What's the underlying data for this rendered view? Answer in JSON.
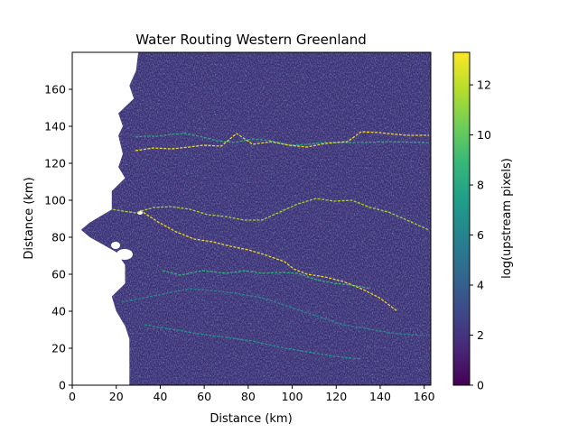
{
  "chart_data": {
    "type": "heatmap",
    "title": "Water Routing Western Greenland",
    "xlabel": "Distance (km)",
    "ylabel": "Distance (km)",
    "xlim": [
      0,
      163
    ],
    "ylim": [
      0,
      180
    ],
    "xticks": [
      0,
      20,
      40,
      60,
      80,
      100,
      120,
      140,
      160
    ],
    "yticks": [
      0,
      20,
      40,
      60,
      80,
      100,
      120,
      140,
      160
    ],
    "colorbar": {
      "label": "log(upstream pixels)",
      "range": [
        0,
        13.3
      ],
      "ticks": [
        0,
        2,
        4,
        6,
        8,
        10,
        12
      ],
      "colormap": "viridis",
      "colors": [
        "#440154",
        "#482878",
        "#3e4989",
        "#31688e",
        "#26828e",
        "#1f9e89",
        "#35b779",
        "#6ece58",
        "#b5de2b",
        "#fde725"
      ]
    },
    "land_edge_west_km": [
      [
        0,
        30
      ],
      [
        10,
        29
      ],
      [
        18,
        26
      ],
      [
        25,
        28
      ],
      [
        33,
        21
      ],
      [
        40,
        23
      ],
      [
        45,
        21
      ],
      [
        55,
        23
      ],
      [
        62,
        21
      ],
      [
        68,
        24
      ],
      [
        75,
        18
      ],
      [
        85,
        18
      ],
      [
        92,
        8
      ],
      [
        96,
        4
      ],
      [
        100,
        8
      ],
      [
        108,
        20
      ],
      [
        115,
        24
      ],
      [
        125,
        24
      ],
      [
        132,
        18
      ],
      [
        140,
        20
      ],
      [
        148,
        24
      ],
      [
        155,
        26
      ],
      [
        162,
        26
      ],
      [
        170,
        26
      ],
      [
        180,
        26
      ]
    ],
    "major_channels": [
      {
        "name": "",
        "points": [
          [
            150,
            152
          ],
          [
            160,
            151
          ],
          [
            175,
            151
          ],
          [
            190,
            149
          ],
          [
            205,
            148
          ],
          [
            225,
            152
          ],
          [
            240,
            156
          ],
          [
            260,
            158
          ],
          [
            280,
            154
          ],
          [
            300,
            156
          ],
          [
            320,
            161
          ],
          [
            340,
            160
          ],
          [
            360,
            158
          ],
          [
            400,
            158
          ],
          [
            430,
            157
          ],
          [
            475,
            158
          ]
        ]
      },
      {
        "name": "",
        "points": [
          [
            150,
            167
          ],
          [
            170,
            164
          ],
          [
            190,
            165
          ],
          [
            210,
            163
          ],
          [
            225,
            161
          ],
          [
            245,
            162
          ],
          [
            262,
            148
          ],
          [
            280,
            160
          ],
          [
            300,
            157
          ],
          [
            320,
            161
          ],
          [
            340,
            163
          ],
          [
            360,
            159
          ],
          [
            385,
            157
          ],
          [
            400,
            146
          ],
          [
            420,
            147
          ],
          [
            450,
            150
          ],
          [
            475,
            150
          ]
        ]
      },
      {
        "name": "",
        "points": [
          [
            90,
            225
          ],
          [
            110,
            230
          ],
          [
            130,
            233
          ],
          [
            150,
            236
          ],
          [
            170,
            230
          ],
          [
            190,
            229
          ],
          [
            210,
            232
          ],
          [
            230,
            238
          ],
          [
            250,
            240
          ],
          [
            270,
            244
          ],
          [
            290,
            244
          ],
          [
            310,
            235
          ],
          [
            330,
            226
          ],
          [
            350,
            220
          ],
          [
            370,
            223
          ],
          [
            390,
            222
          ],
          [
            410,
            230
          ],
          [
            430,
            235
          ],
          [
            455,
            246
          ],
          [
            475,
            255
          ]
        ]
      },
      {
        "name": "",
        "points": [
          [
            155,
            233
          ],
          [
            175,
            246
          ],
          [
            195,
            257
          ],
          [
            215,
            265
          ],
          [
            235,
            268
          ],
          [
            255,
            273
          ],
          [
            275,
            277
          ],
          [
            295,
            283
          ],
          [
            315,
            290
          ],
          [
            325,
            298
          ],
          [
            340,
            304
          ],
          [
            360,
            307
          ],
          [
            380,
            312
          ],
          [
            400,
            320
          ],
          [
            420,
            330
          ],
          [
            440,
            345
          ]
        ]
      },
      {
        "name": "",
        "points": [
          [
            180,
            300
          ],
          [
            200,
            305
          ],
          [
            225,
            300
          ],
          [
            250,
            303
          ],
          [
            270,
            300
          ],
          [
            290,
            303
          ],
          [
            310,
            302
          ],
          [
            330,
            303
          ],
          [
            350,
            310
          ],
          [
            370,
            314
          ],
          [
            390,
            316
          ],
          [
            410,
            320
          ]
        ]
      },
      {
        "name": "",
        "points": [
          [
            135,
            335
          ],
          [
            160,
            330
          ],
          [
            185,
            325
          ],
          [
            210,
            320
          ],
          [
            235,
            322
          ],
          [
            260,
            325
          ],
          [
            290,
            330
          ],
          [
            320,
            340
          ],
          [
            350,
            350
          ],
          [
            380,
            360
          ],
          [
            410,
            365
          ],
          [
            440,
            370
          ],
          [
            470,
            372
          ]
        ]
      },
      {
        "name": "",
        "points": [
          [
            160,
            360
          ],
          [
            190,
            365
          ],
          [
            220,
            370
          ],
          [
            250,
            374
          ],
          [
            280,
            378
          ],
          [
            310,
            385
          ],
          [
            340,
            390
          ],
          [
            370,
            395
          ],
          [
            400,
            398
          ]
        ]
      }
    ]
  }
}
